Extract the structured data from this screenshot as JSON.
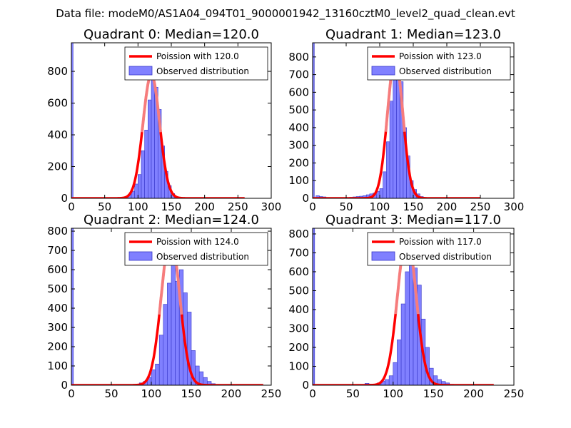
{
  "suptitle": "Data file: modeM0/AS1A04_094T01_9000001942_13160cztM0_level2_quad_clean.evt",
  "colors": {
    "hist_fill": "#8080ff",
    "hist_edge": "#3636c8",
    "poisson": "#ff0000",
    "poisson_peak": "#f58a8a",
    "axes": "#000000"
  },
  "legend": {
    "poisson_prefix": "Poission with ",
    "observed": "Observed distribution"
  },
  "chart_data": [
    {
      "type": "bar",
      "title": "Quadrant 0: Median=120.0",
      "median": 120.0,
      "poisson_label": "Poission with 120.0",
      "xlim": [
        0,
        300
      ],
      "ylim": [
        0,
        980
      ],
      "xticks": [
        0,
        50,
        100,
        150,
        200,
        250,
        300
      ],
      "yticks": [
        0,
        200,
        400,
        600,
        800
      ],
      "bin_width": 5,
      "zero_bin": 980,
      "bins": [
        [
          80,
          8
        ],
        [
          85,
          25
        ],
        [
          90,
          45
        ],
        [
          95,
          90
        ],
        [
          100,
          150
        ],
        [
          105,
          300
        ],
        [
          110,
          430
        ],
        [
          115,
          620
        ],
        [
          120,
          850
        ],
        [
          125,
          700
        ],
        [
          130,
          560
        ],
        [
          135,
          330
        ],
        [
          140,
          170
        ],
        [
          145,
          80
        ],
        [
          150,
          30
        ],
        [
          155,
          10
        ],
        [
          160,
          3
        ]
      ],
      "poisson": {
        "mean": 120.0,
        "peak": 780,
        "x_start": 0,
        "x_end": 260,
        "sigma": 12.5
      }
    },
    {
      "type": "bar",
      "title": "Quadrant 1: Median=123.0",
      "median": 123.0,
      "poisson_label": "Poission with 123.0",
      "xlim": [
        0,
        300
      ],
      "ylim": [
        0,
        880
      ],
      "xticks": [
        0,
        50,
        100,
        150,
        200,
        250,
        300
      ],
      "yticks": [
        0,
        100,
        200,
        300,
        400,
        500,
        600,
        700,
        800
      ],
      "bin_width": 5,
      "zero_bin": 880,
      "bins": [
        [
          5,
          15
        ],
        [
          10,
          10
        ],
        [
          15,
          8
        ],
        [
          20,
          5
        ],
        [
          30,
          3
        ],
        [
          50,
          4
        ],
        [
          55,
          6
        ],
        [
          60,
          8
        ],
        [
          65,
          10
        ],
        [
          70,
          12
        ],
        [
          75,
          15
        ],
        [
          80,
          20
        ],
        [
          85,
          25
        ],
        [
          90,
          30
        ],
        [
          95,
          40
        ],
        [
          100,
          55
        ],
        [
          105,
          150
        ],
        [
          110,
          320
        ],
        [
          115,
          550
        ],
        [
          120,
          740
        ],
        [
          125,
          760
        ],
        [
          130,
          660
        ],
        [
          135,
          400
        ],
        [
          140,
          240
        ],
        [
          145,
          100
        ],
        [
          150,
          50
        ],
        [
          155,
          25
        ],
        [
          160,
          10
        ],
        [
          165,
          5
        ]
      ],
      "poisson": {
        "mean": 123.0,
        "peak": 790,
        "x_start": 0,
        "x_end": 250,
        "sigma": 11.5
      }
    },
    {
      "type": "bar",
      "title": "Quadrant 2: Median=124.0",
      "median": 124.0,
      "poisson_label": "Poission with 124.0",
      "xlim": [
        0,
        250
      ],
      "ylim": [
        0,
        815
      ],
      "xticks": [
        0,
        50,
        100,
        150,
        200,
        250
      ],
      "yticks": [
        0,
        100,
        200,
        300,
        400,
        500,
        600,
        700,
        800
      ],
      "bin_width": 5,
      "zero_bin": 815,
      "bins": [
        [
          80,
          5
        ],
        [
          85,
          12
        ],
        [
          90,
          20
        ],
        [
          95,
          40
        ],
        [
          100,
          80
        ],
        [
          105,
          110
        ],
        [
          110,
          260
        ],
        [
          115,
          420
        ],
        [
          120,
          530
        ],
        [
          125,
          720
        ],
        [
          130,
          540
        ],
        [
          135,
          600
        ],
        [
          140,
          480
        ],
        [
          145,
          380
        ],
        [
          150,
          180
        ],
        [
          155,
          100
        ],
        [
          160,
          70
        ],
        [
          165,
          40
        ],
        [
          170,
          20
        ],
        [
          175,
          8
        ],
        [
          180,
          3
        ]
      ],
      "poisson": {
        "mean": 124.0,
        "peak": 770,
        "x_start": 0,
        "x_end": 240,
        "sigma": 11.5
      }
    },
    {
      "type": "bar",
      "title": "Quadrant 3: Median=117.0",
      "median": 117.0,
      "poisson_label": "Poission with 117.0",
      "xlim": [
        0,
        250
      ],
      "ylim": [
        0,
        830
      ],
      "xticks": [
        0,
        50,
        100,
        150,
        200,
        250
      ],
      "yticks": [
        0,
        100,
        200,
        300,
        400,
        500,
        600,
        700,
        800
      ],
      "bin_width": 5,
      "zero_bin": 830,
      "bins": [
        [
          65,
          10
        ],
        [
          70,
          6
        ],
        [
          75,
          6
        ],
        [
          80,
          12
        ],
        [
          85,
          22
        ],
        [
          90,
          30
        ],
        [
          95,
          50
        ],
        [
          100,
          120
        ],
        [
          105,
          240
        ],
        [
          110,
          430
        ],
        [
          115,
          600
        ],
        [
          120,
          780
        ],
        [
          125,
          620
        ],
        [
          130,
          530
        ],
        [
          135,
          350
        ],
        [
          140,
          200
        ],
        [
          145,
          90
        ],
        [
          150,
          50
        ],
        [
          155,
          30
        ],
        [
          160,
          20
        ],
        [
          165,
          12
        ],
        [
          170,
          5
        ]
      ],
      "poisson": {
        "mean": 117.0,
        "peak": 790,
        "x_start": 0,
        "x_end": 225,
        "sigma": 11.5
      }
    }
  ]
}
